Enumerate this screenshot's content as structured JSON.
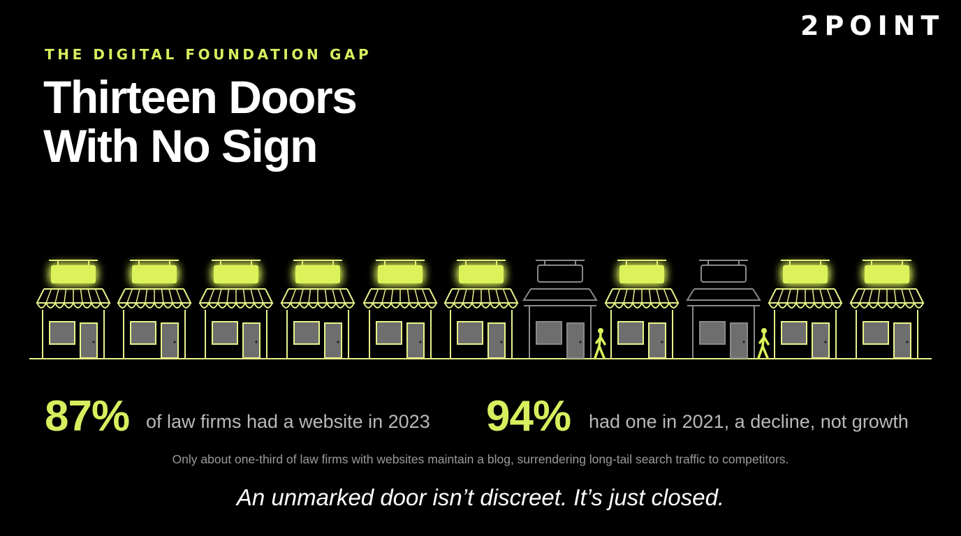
{
  "brand": "2POINT",
  "eyebrow": "THE DIGITAL FOUNDATION GAP",
  "title": {
    "line1": "Thirteen Doors",
    "line2": "With No Sign"
  },
  "colors": {
    "accent": "#d6ef5e",
    "sign_glow": "#dcf25a",
    "storefront_lit": "#e9f38a",
    "storefront_dark": "#8a8a8a",
    "window": "#6e6e6e",
    "background": "#000000"
  },
  "storefronts": [
    {
      "state": "lit",
      "person": false
    },
    {
      "state": "lit",
      "person": false
    },
    {
      "state": "lit",
      "person": false
    },
    {
      "state": "lit",
      "person": false
    },
    {
      "state": "lit",
      "person": false
    },
    {
      "state": "lit",
      "person": false
    },
    {
      "state": "dark",
      "person": true
    },
    {
      "state": "lit",
      "person": false
    },
    {
      "state": "dark",
      "person": true
    },
    {
      "state": "lit",
      "person": false
    },
    {
      "state": "lit",
      "person": false
    }
  ],
  "stats": [
    {
      "value": "87%",
      "text": "of law firms had a website in 2023"
    },
    {
      "value": "94%",
      "text": "had one in 2021, a decline, not growth"
    }
  ],
  "note": "Only about one-third of law firms with websites maintain a blog, surrendering long-tail search traffic to competitors.",
  "tagline": "An unmarked door isn’t discreet. It’s just closed."
}
